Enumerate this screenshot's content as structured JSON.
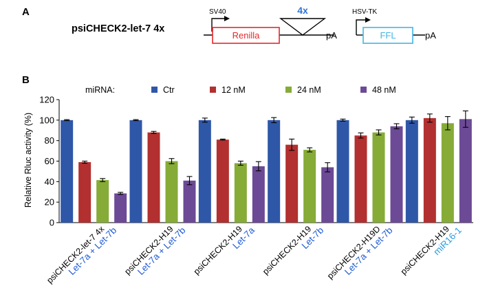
{
  "panel_a": {
    "label": "A",
    "construct_name": "psiCHECK2-let-7 4x",
    "sv40_label": "SV40",
    "renilla_label": "Renilla",
    "insert_label": "4x",
    "pa1_label": "pA",
    "hsvtk_label": "HSV-TK",
    "ffl_label": "FFL",
    "pa2_label": "pA",
    "colors": {
      "renilla_box": "#e8262a",
      "ffl_box": "#3fb6e8",
      "insert_label": "#2e74d8"
    }
  },
  "panel_b": {
    "label": "B"
  },
  "chart_data": {
    "type": "bar",
    "legend_title": "miRNA:",
    "ylabel": "Relative Rluc activity (%)",
    "ylim": [
      0,
      120
    ],
    "yticks": [
      0,
      20,
      40,
      60,
      80,
      100,
      120
    ],
    "grid": false,
    "legend_position": "top",
    "categories": [
      {
        "construct": "psiCHECK2-let-7 4x",
        "mirna": "Let-7a + Let-7b",
        "mirna_color": "#1f5bd6"
      },
      {
        "construct": "psiCHECK2-H19",
        "mirna": "Let-7a + Let-7b",
        "mirna_color": "#1f5bd6"
      },
      {
        "construct": "psiCHECK2-H19",
        "mirna": "Let-7a",
        "mirna_color": "#1f5bd6"
      },
      {
        "construct": "psiCHECK2-H19",
        "mirna": "Let-7b",
        "mirna_color": "#1f5bd6"
      },
      {
        "construct": "psiCHECK2-H19D",
        "mirna": "Let-7a + Let-7b",
        "mirna_color": "#1f5bd6"
      },
      {
        "construct": "psiCHECK2-H19",
        "mirna": "miR16-1",
        "mirna_color": "#2a9de0"
      }
    ],
    "series": [
      {
        "name": "Ctr",
        "color": "#2f57a8",
        "values": [
          100,
          100,
          100,
          100,
          100,
          100
        ],
        "errors": [
          0.5,
          0.5,
          2,
          2.5,
          1,
          3
        ]
      },
      {
        "name": "12 nM",
        "color": "#b2302f",
        "values": [
          59,
          88,
          81,
          76,
          85,
          102
        ],
        "errors": [
          1,
          1,
          0.5,
          5.5,
          2.5,
          4
        ]
      },
      {
        "name": "24 nM",
        "color": "#86ab37",
        "values": [
          41.5,
          60,
          58,
          71,
          88,
          97
        ],
        "errors": [
          1.5,
          2.5,
          2,
          2,
          2.5,
          6.5
        ]
      },
      {
        "name": "48 nM",
        "color": "#6c4a96",
        "values": [
          28.5,
          41,
          55,
          54,
          94,
          101
        ],
        "errors": [
          1,
          4,
          4.5,
          4.5,
          2.5,
          8
        ]
      }
    ]
  }
}
